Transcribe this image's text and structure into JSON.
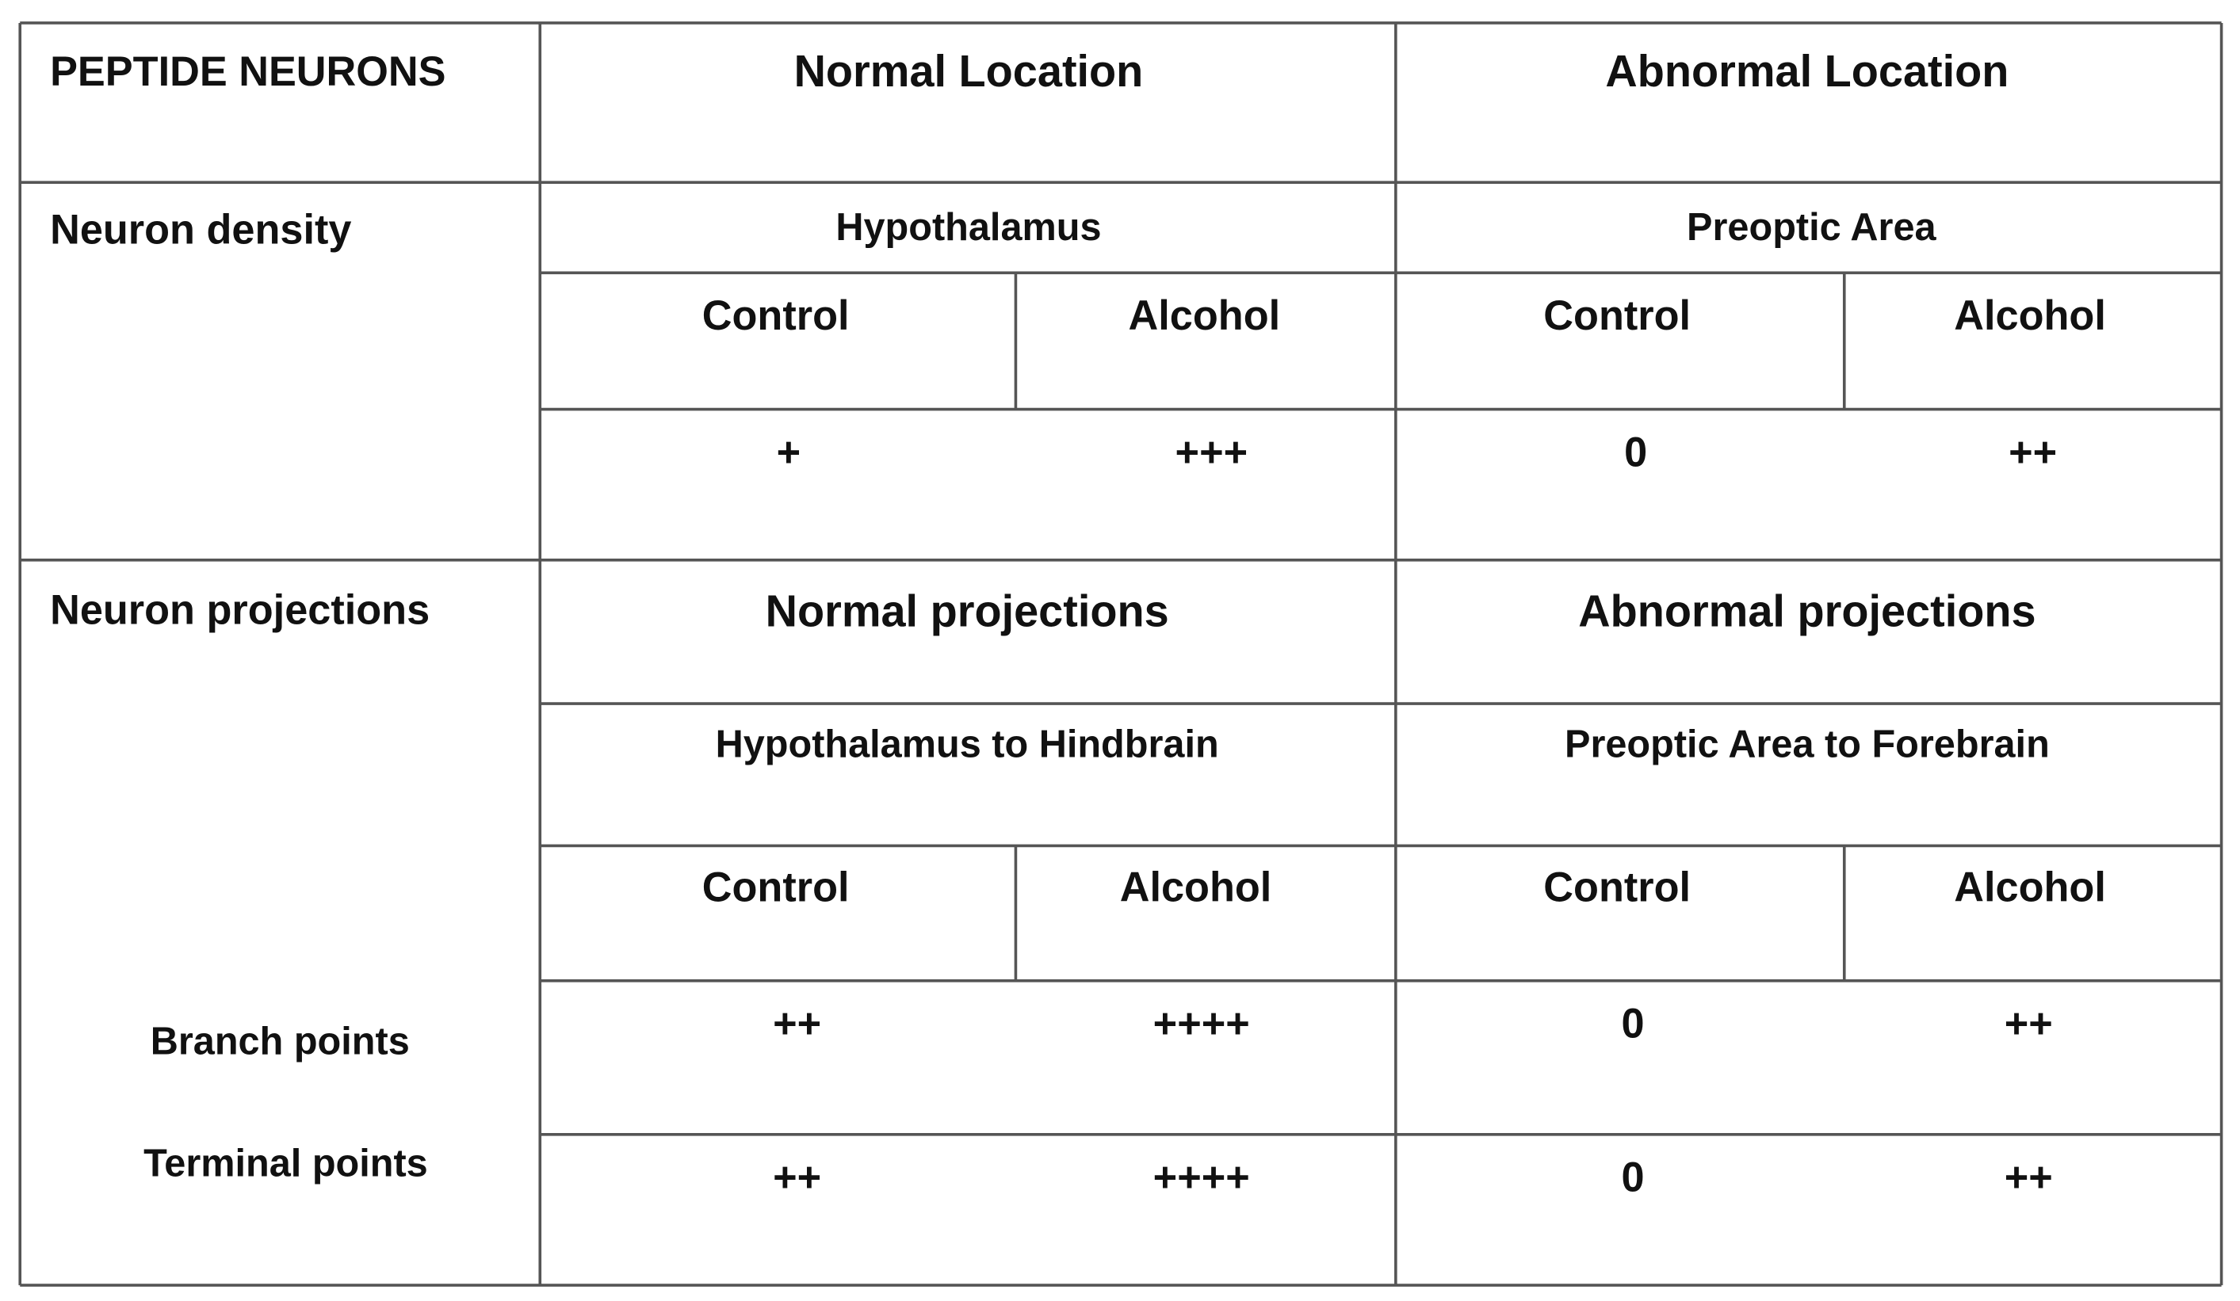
{
  "header": {
    "title": "PEPTIDE NEURONS",
    "columns": [
      "Normal Location",
      "Abnormal Location"
    ]
  },
  "density": {
    "label": "Neuron density",
    "regions": [
      "Hypothalamus",
      "Preoptic Area"
    ],
    "groups": [
      "Control",
      "Alcohol",
      "Control",
      "Alcohol"
    ],
    "values": [
      "+",
      "+++",
      "0",
      "++"
    ]
  },
  "projections": {
    "label": "Neuron projections",
    "headers": [
      "Normal projections",
      "Abnormal projections"
    ],
    "paths": [
      "Hypothalamus to Hindbrain",
      "Preoptic Area to Forebrain"
    ],
    "groups": [
      "Control",
      "Alcohol",
      "Control",
      "Alcohol"
    ],
    "rows": [
      {
        "label": "Branch points",
        "values": [
          "++",
          "++++",
          "0",
          "++"
        ]
      },
      {
        "label": "Terminal points",
        "values": [
          "++",
          "++++",
          "0",
          "++"
        ]
      }
    ]
  }
}
